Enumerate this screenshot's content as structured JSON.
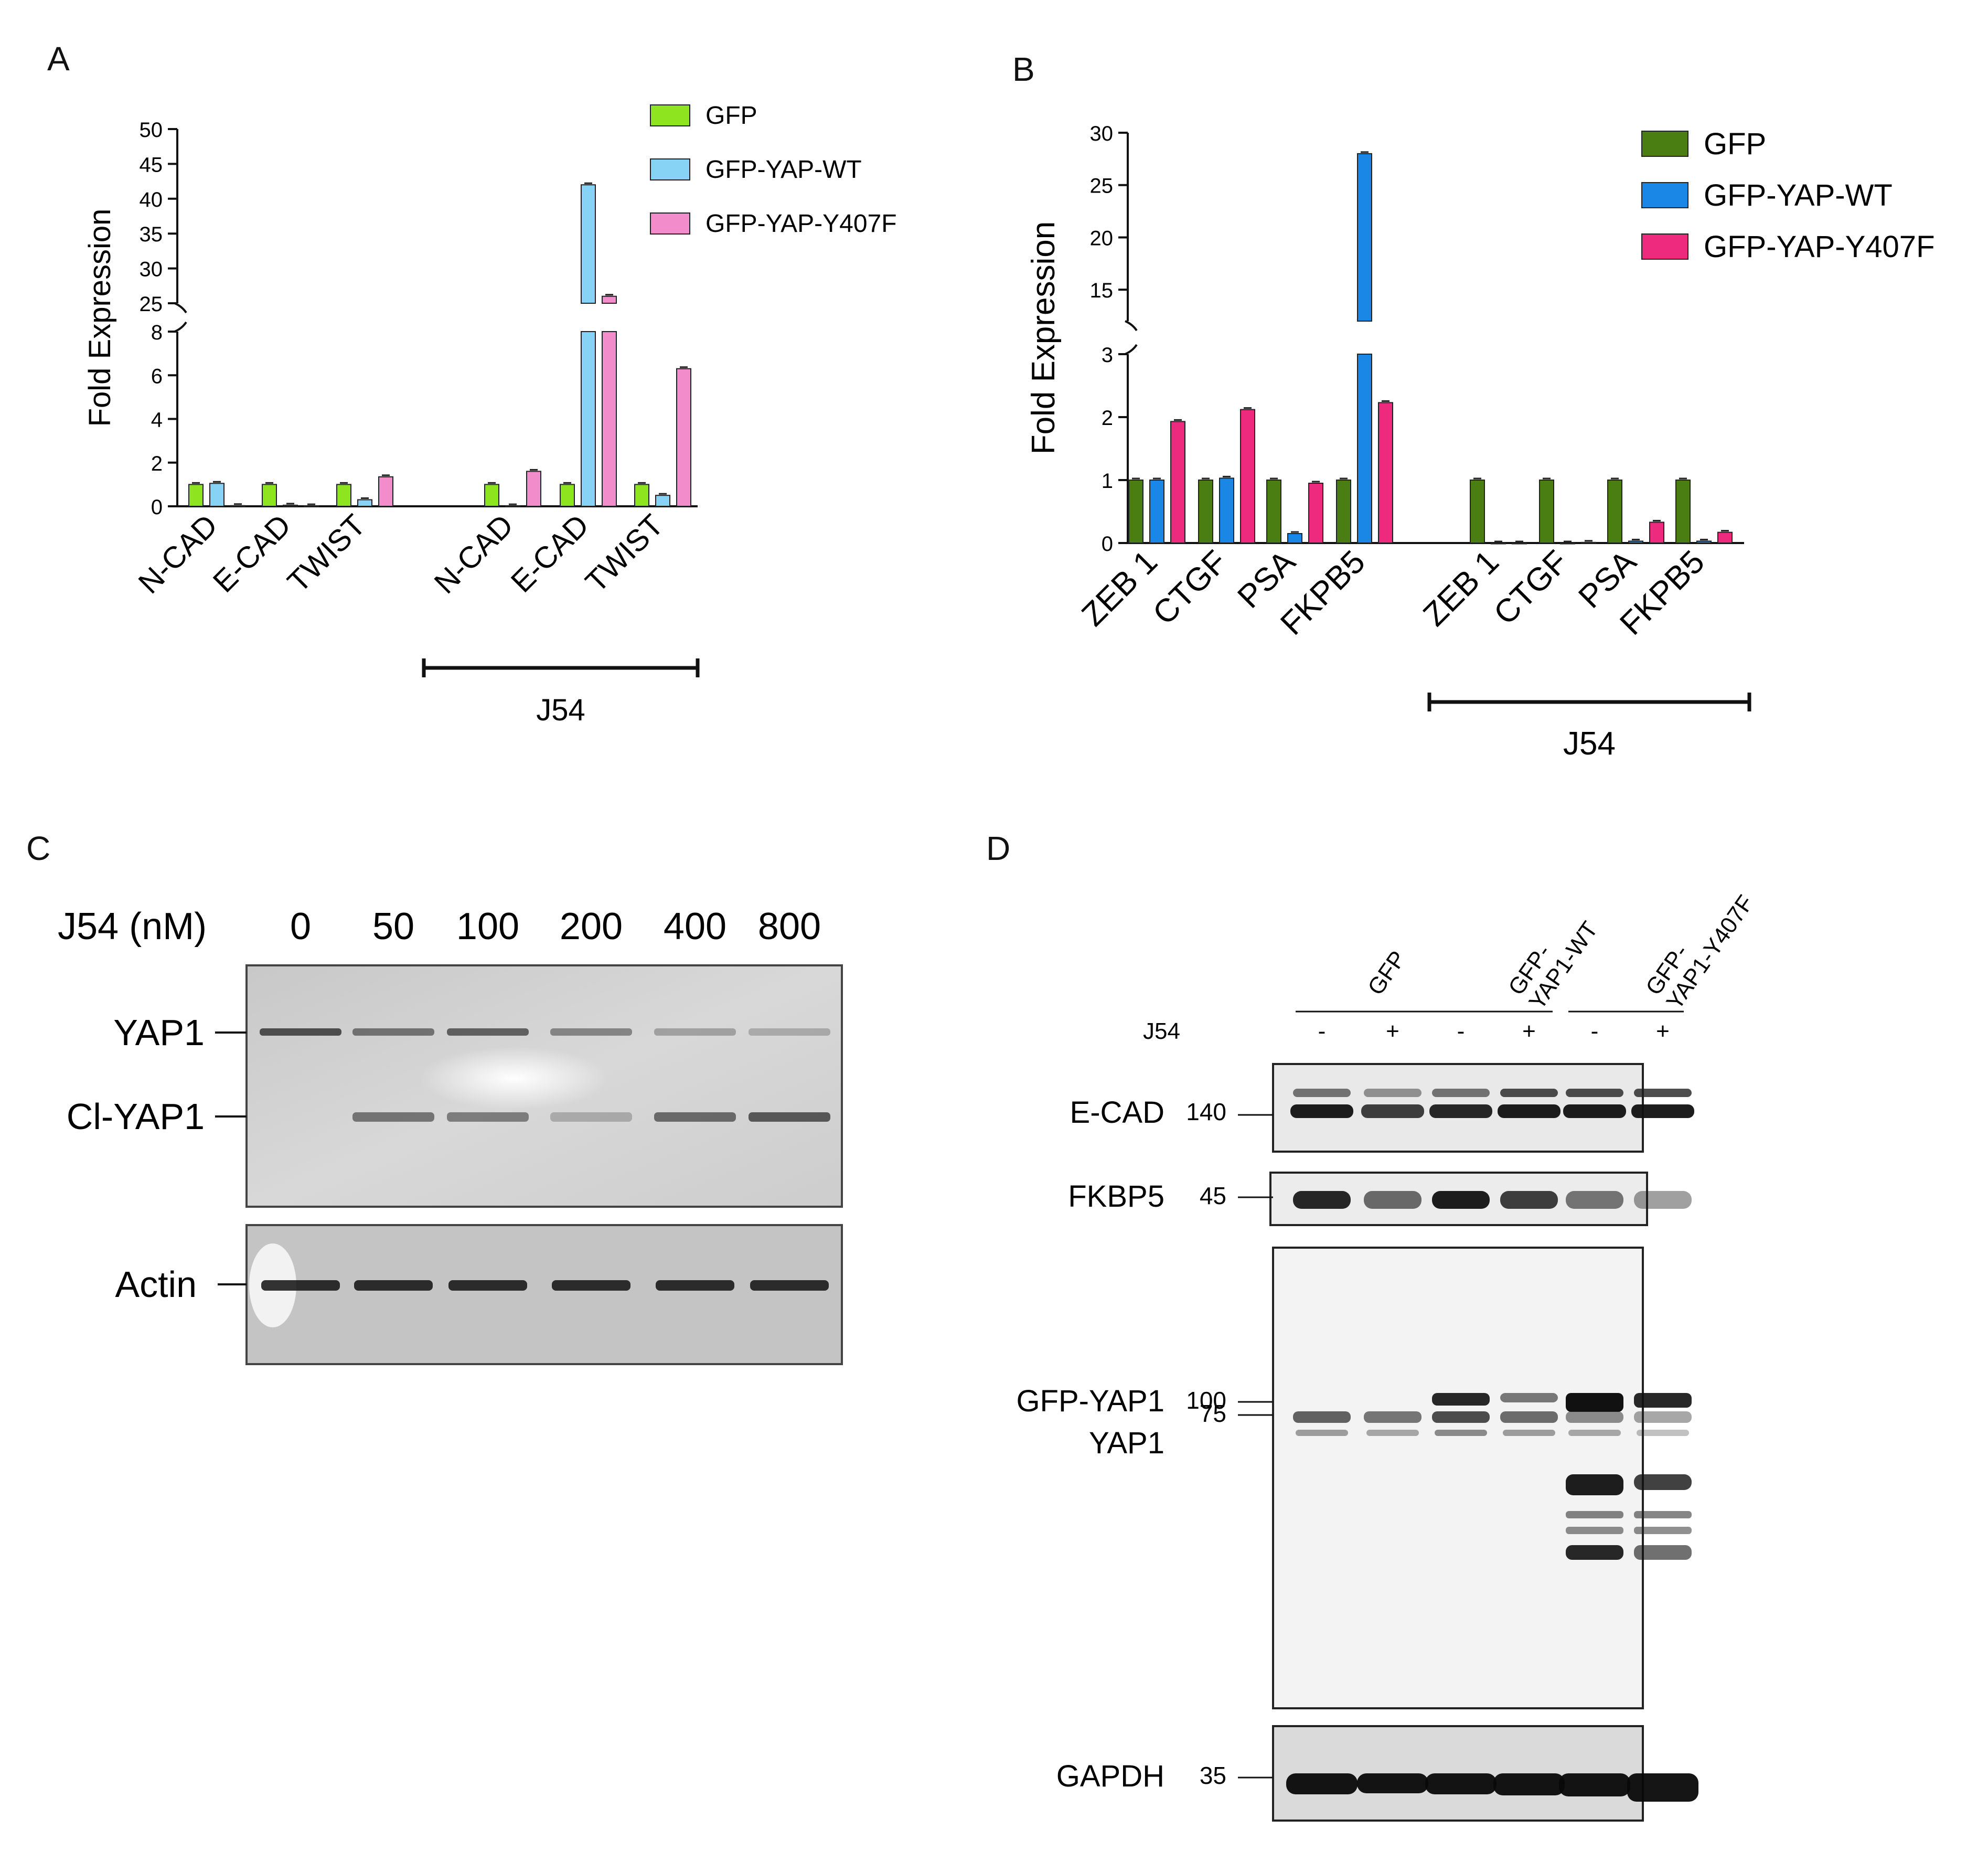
{
  "panels": {
    "A": "A",
    "B": "B",
    "C": "C",
    "D": "D"
  },
  "colors": {
    "A": [
      "#8ee51f",
      "#86d3f5",
      "#f28ccb"
    ],
    "B": [
      "#4a7d12",
      "#1a86e6",
      "#ee2a7e"
    ]
  },
  "chart_data": [
    {
      "id": "A",
      "type": "bar",
      "ylabel": "Fold Expression",
      "broken_axis": true,
      "ylim_lower": [
        0,
        8
      ],
      "ylim_upper": [
        25,
        50
      ],
      "yticks_lower": [
        "0",
        "2",
        "4",
        "6",
        "8"
      ],
      "yticks_upper": [
        "25",
        "30",
        "35",
        "40",
        "45",
        "50"
      ],
      "categories": [
        "N-CAD",
        "E-CAD",
        "TWIST",
        "N-CAD",
        "E-CAD",
        "TWIST"
      ],
      "group_label": "J54",
      "series": [
        {
          "name": "GFP",
          "values": [
            1.0,
            1.0,
            1.0,
            1.0,
            1.0,
            1.0
          ]
        },
        {
          "name": "GFP-YAP-WT",
          "values": [
            1.05,
            0.05,
            0.3,
            0.02,
            42.0,
            0.5
          ]
        },
        {
          "name": "GFP-YAP-Y407F",
          "values": [
            0.03,
            0.02,
            1.35,
            1.6,
            26.0,
            6.3
          ]
        }
      ]
    },
    {
      "id": "B",
      "type": "bar",
      "ylabel": "Fold Expression",
      "broken_axis": true,
      "ylim_lower": [
        0,
        3
      ],
      "ylim_upper": [
        12,
        30
      ],
      "yticks_lower": [
        "0",
        "1",
        "2",
        "3"
      ],
      "yticks_upper": [
        "15",
        "20",
        "25",
        "30"
      ],
      "categories": [
        "ZEB 1",
        "CTGF",
        "PSA",
        "FKPB5",
        "ZEB 1",
        "CTGF",
        "PSA",
        "FKPB5"
      ],
      "group_label": "J54",
      "series": [
        {
          "name": "GFP",
          "values": [
            1.0,
            1.0,
            1.0,
            1.0,
            1.0,
            1.0,
            1.0,
            1.0
          ]
        },
        {
          "name": "GFP-YAP-WT",
          "values": [
            1.0,
            1.03,
            0.15,
            28.0,
            0.0,
            0.0,
            0.03,
            0.03
          ]
        },
        {
          "name": "GFP-YAP-Y407F",
          "values": [
            1.93,
            2.12,
            0.95,
            2.23,
            0.0,
            0.01,
            0.33,
            0.17
          ]
        }
      ]
    }
  ],
  "blotC": {
    "header": "J54 (nM)",
    "lanes": [
      "0",
      "50",
      "100",
      "200",
      "400",
      "800"
    ],
    "labels": {
      "yap1": "YAP1",
      "clyap1": "Cl-YAP1",
      "actin": "Actin"
    }
  },
  "blotD": {
    "groups": [
      "GFP",
      "GFP-\nYAP1-WT",
      "GFP-\nYAP1-Y407F"
    ],
    "group_line1": [
      "GFP",
      "GFP-",
      "GFP-"
    ],
    "group_line2": [
      "",
      "YAP1-WT",
      "YAP1-Y407F"
    ],
    "j54_label": "J54",
    "treat": [
      "-",
      "+",
      "-",
      "+",
      "-",
      "+"
    ],
    "rows": [
      {
        "label": "E-CAD",
        "mw": "140"
      },
      {
        "label": "FKBP5",
        "mw": "45"
      },
      {
        "label": "GFP-YAP1",
        "mw": "100"
      },
      {
        "label": "YAP1",
        "mw": "75"
      },
      {
        "label": "GAPDH",
        "mw": "35"
      }
    ]
  }
}
